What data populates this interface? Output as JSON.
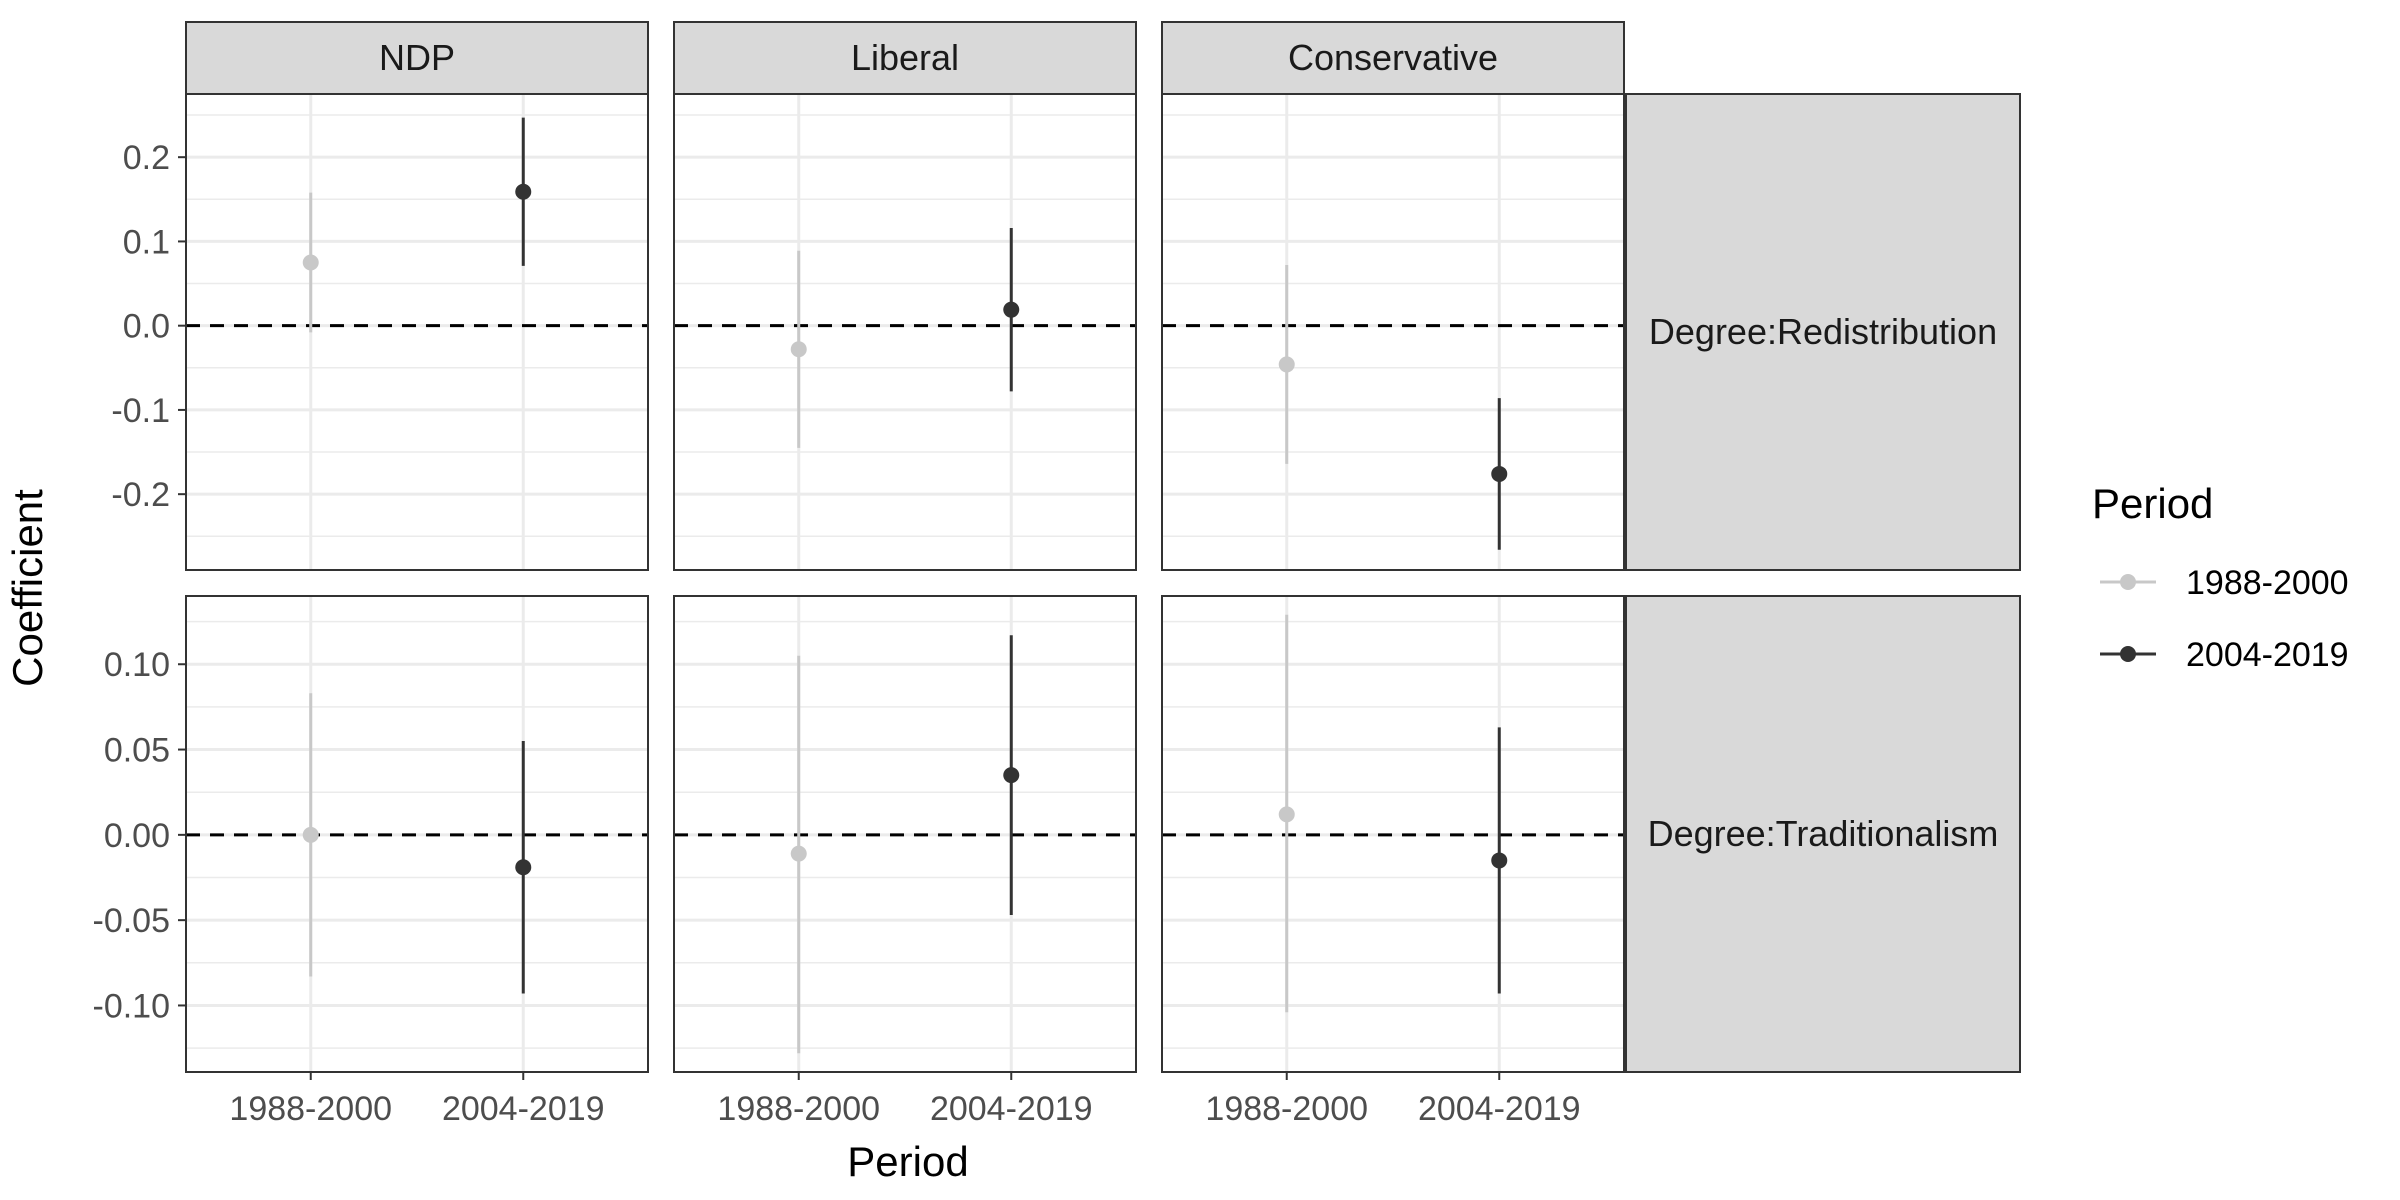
{
  "chart_data": {
    "type": "pointrange",
    "xlabel": "Period",
    "ylabel": "Coefficient",
    "x_categories": [
      "1988-2000",
      "2004-2019"
    ],
    "columns": [
      "NDP",
      "Liberal",
      "Conservative"
    ],
    "rows": [
      {
        "label": "Degree:Redistribution",
        "ylim": [
          -0.29,
          0.275
        ],
        "ticks": [
          0.2,
          0.1,
          0.0,
          -0.1,
          -0.2
        ],
        "tick_labels": [
          "0.2",
          "0.1",
          "0.0",
          "-0.1",
          "-0.2"
        ],
        "panels": [
          {
            "column": "NDP",
            "points": [
              {
                "period": "1988-2000",
                "estimate": 0.075,
                "lower": -0.008,
                "upper": 0.158
              },
              {
                "period": "2004-2019",
                "estimate": 0.159,
                "lower": 0.071,
                "upper": 0.247
              }
            ]
          },
          {
            "column": "Liberal",
            "points": [
              {
                "period": "1988-2000",
                "estimate": -0.028,
                "lower": -0.145,
                "upper": 0.089
              },
              {
                "period": "2004-2019",
                "estimate": 0.019,
                "lower": -0.078,
                "upper": 0.116
              }
            ]
          },
          {
            "column": "Conservative",
            "points": [
              {
                "period": "1988-2000",
                "estimate": -0.046,
                "lower": -0.164,
                "upper": 0.072
              },
              {
                "period": "2004-2019",
                "estimate": -0.176,
                "lower": -0.266,
                "upper": -0.086
              }
            ]
          }
        ]
      },
      {
        "label": "Degree:Traditionalism",
        "ylim": [
          -0.139,
          0.14
        ],
        "ticks": [
          0.1,
          0.05,
          0.0,
          -0.05,
          -0.1
        ],
        "tick_labels": [
          "0.10",
          "0.05",
          "0.00",
          "-0.05",
          "-0.10"
        ],
        "panels": [
          {
            "column": "NDP",
            "points": [
              {
                "period": "1988-2000",
                "estimate": 0.0,
                "lower": -0.083,
                "upper": 0.083
              },
              {
                "period": "2004-2019",
                "estimate": -0.019,
                "lower": -0.093,
                "upper": 0.055
              }
            ]
          },
          {
            "column": "Liberal",
            "points": [
              {
                "period": "1988-2000",
                "estimate": -0.011,
                "lower": -0.128,
                "upper": 0.105
              },
              {
                "period": "2004-2019",
                "estimate": 0.035,
                "lower": -0.047,
                "upper": 0.117
              }
            ]
          },
          {
            "column": "Conservative",
            "points": [
              {
                "period": "1988-2000",
                "estimate": 0.012,
                "lower": -0.104,
                "upper": 0.129
              },
              {
                "period": "2004-2019",
                "estimate": -0.015,
                "lower": -0.093,
                "upper": 0.063
              }
            ]
          }
        ]
      }
    ],
    "reference_line": {
      "y": 0,
      "style": "dashed"
    },
    "legend": {
      "title": "Period",
      "position": "right",
      "items": [
        {
          "label": "1988-2000",
          "color": "#c8c8c8"
        },
        {
          "label": "2004-2019",
          "color": "#333333"
        }
      ]
    },
    "colors": {
      "strip_fill": "#d9d9d9",
      "panel_border": "#333333",
      "grid": "#ebebeb"
    }
  }
}
